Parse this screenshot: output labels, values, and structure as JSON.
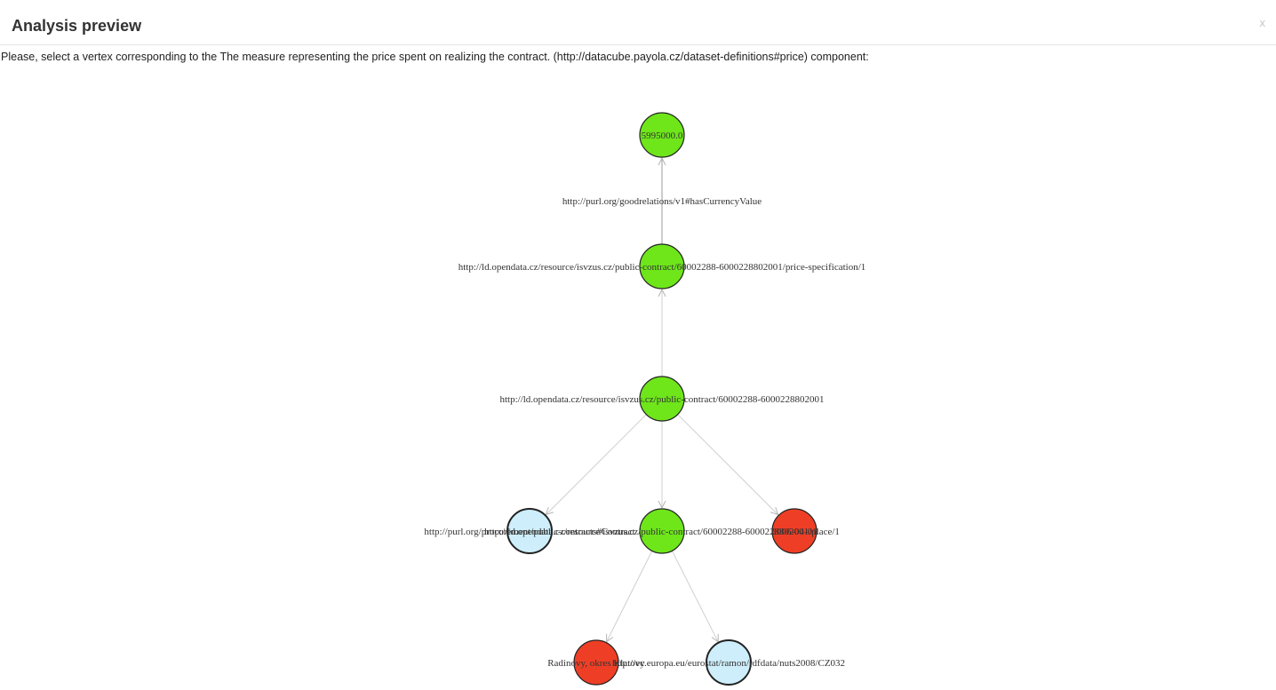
{
  "dialog": {
    "title": "Analysis preview",
    "close_label": "x",
    "instruction": "Please, select a vertex corresponding to the The measure representing the price spent on realizing the contract. (http://datacube.payola.cz/dataset-definitions#price) component:"
  },
  "colors": {
    "literal_vertex": "#6ee61a",
    "uri_vertex": "#cdeefa",
    "red_vertex": "#ee3f26",
    "edge": "#cfcfcf"
  },
  "graph": {
    "vertices": [
      {
        "id": "v_price_value",
        "label": "5995000.0",
        "color": "green"
      },
      {
        "id": "v_price_spec",
        "label": "http://ld.opendata.cz/resource/isvzus.cz/public-contract/60002288-6000228802001/price-specification/1",
        "color": "green"
      },
      {
        "id": "v_contract",
        "label": "http://ld.opendata.cz/resource/isvzus.cz/public-contract/60002288-6000228802001",
        "color": "green"
      },
      {
        "id": "v_contract_type",
        "label": "http://purl.org/procurement/public-contracts#Contract",
        "color": "blue"
      },
      {
        "id": "v_place",
        "label": "http://ld.opendata.cz/resource/isvzus.cz/public-contract/60002288-6000228802001/place/1",
        "color": "green"
      },
      {
        "id": "v_date",
        "label": "2006-04-01",
        "color": "red"
      },
      {
        "id": "v_place_name",
        "label": "Radinovy, okres Klatovy",
        "color": "red"
      },
      {
        "id": "v_nuts",
        "label": "http://ec.europa.eu/eurostat/ramon/rdfdata/nuts2008/CZ032",
        "color": "blue"
      }
    ],
    "edges": [
      {
        "from": "v_price_spec",
        "to": "v_price_value",
        "label": "http://purl.org/goodrelations/v1#hasCurrencyValue"
      },
      {
        "from": "v_contract",
        "to": "v_price_spec",
        "label": ""
      },
      {
        "from": "v_contract",
        "to": "v_contract_type",
        "label": ""
      },
      {
        "from": "v_contract",
        "to": "v_place",
        "label": ""
      },
      {
        "from": "v_contract",
        "to": "v_date",
        "label": ""
      },
      {
        "from": "v_place",
        "to": "v_place_name",
        "label": ""
      },
      {
        "from": "v_place",
        "to": "v_nuts",
        "label": ""
      }
    ]
  }
}
